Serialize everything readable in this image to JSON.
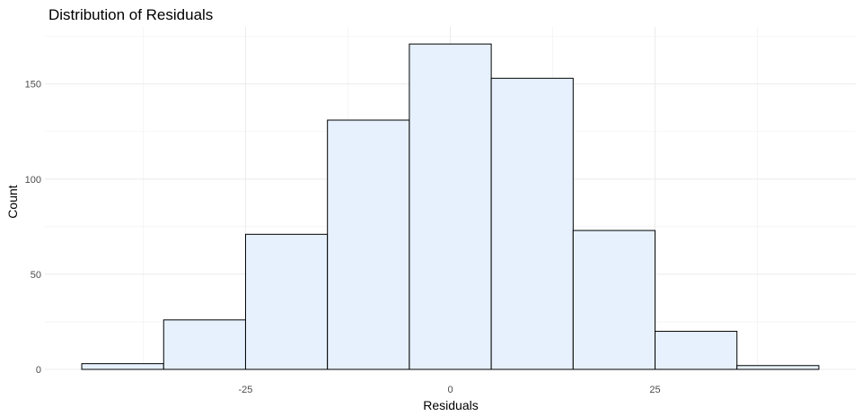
{
  "chart_data": {
    "type": "bar",
    "title": "Distribution of Residuals",
    "xlabel": "Residuals",
    "ylabel": "Count",
    "bin_width": 10,
    "bins": [
      {
        "x0": -45,
        "x1": -35,
        "count": 3
      },
      {
        "x0": -35,
        "x1": -25,
        "count": 26
      },
      {
        "x0": -25,
        "x1": -15,
        "count": 71
      },
      {
        "x0": -15,
        "x1": -5,
        "count": 131
      },
      {
        "x0": -5,
        "x1": 5,
        "count": 171
      },
      {
        "x0": 5,
        "x1": 15,
        "count": 153
      },
      {
        "x0": 15,
        "x1": 25,
        "count": 73
      },
      {
        "x0": 25,
        "x1": 35,
        "count": 20
      },
      {
        "x0": 35,
        "x1": 45,
        "count": 2
      }
    ],
    "xlim": [
      -49.5,
      49.5
    ],
    "ylim": [
      0,
      180
    ],
    "x_ticks": [
      -25,
      0,
      25
    ],
    "x_tick_labels": [
      "-25",
      "0",
      "25"
    ],
    "y_ticks": [
      0,
      50,
      100,
      150
    ],
    "y_tick_labels": [
      "0",
      "50",
      "100",
      "150"
    ],
    "grid": true,
    "bar_fill": "#e6f1fd",
    "bar_stroke": "#000000"
  }
}
